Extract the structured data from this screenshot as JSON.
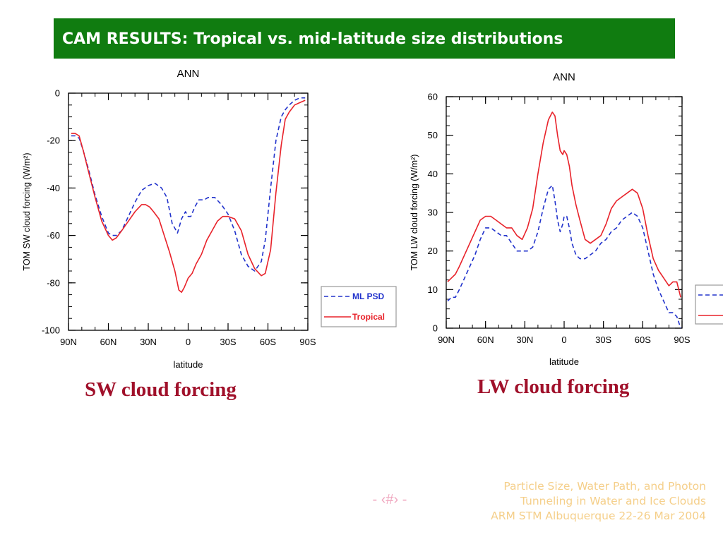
{
  "slide": {
    "title": "CAM RESULTS: Tropical vs. mid-latitude size distributions",
    "caption_sw": "SW cloud forcing",
    "caption_lw": "LW cloud forcing",
    "page_number": "- ‹#› -",
    "footer_lines": [
      "Particle Size, Water Path, and Photon",
      "Tunneling in Water and Ice Clouds",
      "ARM STM Albuquerque 22-26 Mar 2004"
    ],
    "colors": {
      "title_bg": "#107c10",
      "caption": "#a0102a",
      "ml_psd": "#2233cc",
      "tropical": "#e8222a",
      "footer": "#f5cf8a"
    }
  },
  "chart_data": [
    {
      "type": "line",
      "title": "ANN",
      "xlabel": "latitude",
      "ylabel": "TOM SW cloud forcing (W/m²)",
      "xlim": [
        90,
        -90
      ],
      "ylim": [
        -100,
        0
      ],
      "x_ticks": [
        90,
        60,
        30,
        0,
        -30,
        -60,
        -90
      ],
      "x_tick_labels": [
        "90N",
        "60N",
        "30N",
        "0",
        "30S",
        "60S",
        "90S"
      ],
      "y_ticks": [
        0,
        -20,
        -40,
        -60,
        -80,
        -100
      ],
      "y_tick_labels": [
        "0",
        "-20",
        "-40",
        "-60",
        "-80",
        "-100"
      ],
      "legend": {
        "position": "right",
        "entries": [
          "ML PSD",
          "Tropical"
        ]
      },
      "series": [
        {
          "name": "ML PSD",
          "style": "dashed",
          "color": "#2233cc",
          "x": [
            88,
            85,
            82,
            79,
            75,
            70,
            65,
            60,
            57,
            54,
            50,
            45,
            40,
            35,
            30,
            25,
            20,
            16,
            12,
            8,
            5,
            2,
            0,
            -2,
            -5,
            -8,
            -12,
            -15,
            -20,
            -25,
            -30,
            -35,
            -40,
            -45,
            -50,
            -55,
            -58,
            -62,
            -66,
            -70,
            -73,
            -76,
            -80,
            -84,
            -88
          ],
          "y": [
            -18,
            -18,
            -19,
            -24,
            -32,
            -43,
            -52,
            -59,
            -60,
            -60,
            -58,
            -52,
            -46,
            -41,
            -39,
            -38,
            -40,
            -44,
            -55,
            -59,
            -53,
            -50,
            -52,
            -52,
            -48,
            -45,
            -45,
            -44,
            -44,
            -47,
            -51,
            -58,
            -68,
            -73,
            -75,
            -71,
            -62,
            -40,
            -20,
            -10,
            -7,
            -5,
            -3,
            -2,
            -2
          ]
        },
        {
          "name": "Tropical",
          "style": "solid",
          "color": "#e8222a",
          "x": [
            88,
            85,
            82,
            79,
            75,
            70,
            65,
            60,
            57,
            54,
            50,
            45,
            40,
            35,
            32,
            29,
            26,
            22,
            18,
            14,
            10,
            7,
            5,
            3,
            0,
            -3,
            -6,
            -10,
            -14,
            -18,
            -22,
            -26,
            -30,
            -35,
            -40,
            -45,
            -50,
            -55,
            -58,
            -62,
            -66,
            -70,
            -73,
            -76,
            -80,
            -84,
            -88
          ],
          "y": [
            -17,
            -17,
            -18,
            -24,
            -33,
            -44,
            -54,
            -60,
            -62,
            -61,
            -58,
            -54,
            -50,
            -47,
            -47,
            -48,
            -50,
            -53,
            -60,
            -67,
            -75,
            -83,
            -84,
            -82,
            -78,
            -76,
            -72,
            -68,
            -62,
            -58,
            -54,
            -52,
            -52,
            -53,
            -58,
            -68,
            -74,
            -77,
            -76,
            -66,
            -42,
            -22,
            -11,
            -8,
            -5,
            -4,
            -3
          ]
        }
      ]
    },
    {
      "type": "line",
      "title": "ANN",
      "xlabel": "latitude",
      "ylabel": "TOM LW cloud forcing (W/m²)",
      "xlim": [
        90,
        -90
      ],
      "ylim": [
        0,
        60
      ],
      "x_ticks": [
        90,
        60,
        30,
        0,
        -30,
        -60,
        -90
      ],
      "x_tick_labels": [
        "90N",
        "60N",
        "30N",
        "0",
        "30S",
        "60S",
        "90S"
      ],
      "y_ticks": [
        0,
        10,
        20,
        30,
        40,
        50,
        60
      ],
      "y_tick_labels": [
        "0",
        "10",
        "20",
        "30",
        "40",
        "50",
        "60"
      ],
      "legend": {
        "position": "right",
        "entries": []
      },
      "series": [
        {
          "name": "",
          "style": "dashed",
          "color": "#2233cc",
          "x": [
            89,
            86,
            83,
            80,
            76,
            72,
            68,
            64,
            60,
            56,
            52,
            48,
            44,
            40,
            36,
            32,
            28,
            24,
            20,
            16,
            12,
            9,
            7,
            5,
            3,
            1,
            0,
            -2,
            -4,
            -6,
            -9,
            -12,
            -16,
            -20,
            -24,
            -28,
            -32,
            -36,
            -40,
            -44,
            -48,
            -52,
            -56,
            -60,
            -64,
            -68,
            -72,
            -76,
            -80,
            -83,
            -86,
            -89
          ],
          "y": [
            7,
            8,
            8,
            10,
            13,
            16,
            19,
            23,
            26,
            26,
            25,
            24,
            24,
            22,
            20,
            20,
            20,
            21,
            25,
            31,
            36,
            37,
            33,
            28,
            25,
            27,
            29,
            29,
            26,
            22,
            19,
            18,
            18,
            19,
            20,
            22,
            23,
            25,
            26,
            28,
            29,
            30,
            29,
            26,
            20,
            14,
            10,
            7,
            4,
            4,
            3,
            0
          ]
        },
        {
          "name": "",
          "style": "solid",
          "color": "#e8222a",
          "x": [
            89,
            86,
            83,
            80,
            76,
            72,
            68,
            64,
            60,
            56,
            52,
            48,
            44,
            40,
            36,
            32,
            28,
            24,
            20,
            16,
            12,
            9,
            7,
            5,
            3,
            1,
            0,
            -2,
            -4,
            -6,
            -9,
            -12,
            -16,
            -20,
            -24,
            -28,
            -32,
            -36,
            -40,
            -44,
            -48,
            -52,
            -56,
            -60,
            -64,
            -68,
            -72,
            -76,
            -80,
            -83,
            -86,
            -89
          ],
          "y": [
            12,
            13,
            14,
            16,
            19,
            22,
            25,
            28,
            29,
            29,
            28,
            27,
            26,
            26,
            24,
            23,
            26,
            31,
            40,
            48,
            54,
            56,
            55,
            50,
            46,
            45,
            46,
            45,
            42,
            37,
            32,
            28,
            23,
            22,
            23,
            24,
            27,
            31,
            33,
            34,
            35,
            36,
            35,
            31,
            24,
            18,
            15,
            13,
            11,
            12,
            12,
            8
          ]
        }
      ]
    }
  ]
}
